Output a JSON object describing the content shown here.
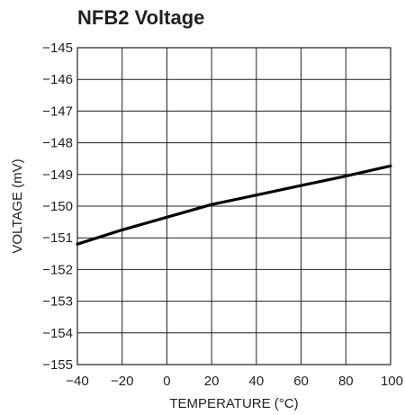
{
  "chart_data": {
    "type": "line",
    "title": "NFB2 Voltage",
    "xlabel": "TEMPERATURE (°C)",
    "ylabel": "VOLTAGE (mV)",
    "xlim": [
      -40,
      100
    ],
    "ylim": [
      -155,
      -145
    ],
    "x_ticks": [
      -40,
      -20,
      0,
      20,
      40,
      60,
      80,
      100
    ],
    "y_ticks": [
      -145,
      -146,
      -147,
      -148,
      -149,
      -150,
      -151,
      -152,
      -153,
      -154,
      -155
    ],
    "x_tick_labels": [
      "−40",
      "−20",
      "0",
      "20",
      "40",
      "60",
      "80",
      "100"
    ],
    "y_tick_labels": [
      "−145",
      "−146",
      "−147",
      "−148",
      "−149",
      "−150",
      "−151",
      "−152",
      "−153",
      "−154",
      "−155"
    ],
    "grid": true,
    "legend": "none",
    "series": [
      {
        "color": "#000000",
        "x": [
          -40,
          -20,
          0,
          20,
          40,
          60,
          80,
          100
        ],
        "y": [
          -151.2,
          -150.75,
          -150.35,
          -149.95,
          -149.65,
          -149.35,
          -149.05,
          -148.73
        ]
      }
    ]
  }
}
